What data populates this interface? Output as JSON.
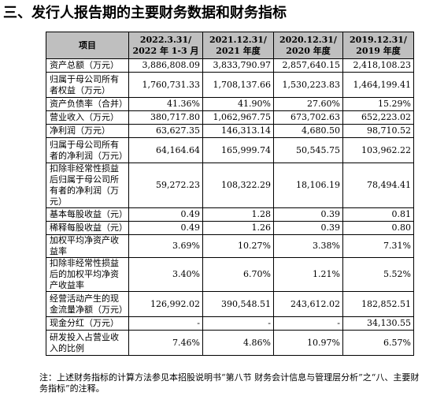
{
  "title": "三、发行人报告期的主要财务数据和财务指标",
  "headers": [
    "项目",
    "2022.3.31/\n2022 年 1-3 月",
    "2021.12.31/\n2021 年度",
    "2020.12.31/\n2020 年度",
    "2019.12.31/\n2019 年度"
  ],
  "rows": [
    {
      "label": "资产总额（万元）",
      "values": [
        "3,886,808.09",
        "3,833,790.97",
        "2,857,640.15",
        "2,418,108.23"
      ]
    },
    {
      "label": "归属于母公司所有者权益（万元）",
      "values": [
        "1,760,731.33",
        "1,708,137.66",
        "1,530,223.83",
        "1,464,199.41"
      ]
    },
    {
      "label": "资产负债率（合并）",
      "values": [
        "41.36%",
        "41.90%",
        "27.60%",
        "15.29%"
      ]
    },
    {
      "label": "营业收入（万元）",
      "values": [
        "380,717.80",
        "1,062,967.75",
        "673,702.63",
        "652,223.02"
      ]
    },
    {
      "label": "净利润（万元）",
      "values": [
        "63,627.35",
        "146,313.14",
        "4,680.50",
        "98,710.52"
      ]
    },
    {
      "label": "归属于母公司所有者的净利润（万元）",
      "values": [
        "64,164.64",
        "165,999.74",
        "50,545.75",
        "103,962.22"
      ]
    },
    {
      "label": "扣除非经常性损益后归属于母公司所有者的净利润（万元）",
      "values": [
        "59,272.23",
        "108,322.29",
        "18,106.19",
        "78,494.41"
      ]
    },
    {
      "label": "基本每股收益（元）",
      "values": [
        "0.49",
        "1.28",
        "0.39",
        "0.81"
      ]
    },
    {
      "label": "稀释每股收益（元）",
      "values": [
        "0.49",
        "1.26",
        "0.39",
        "0.80"
      ]
    },
    {
      "label": "加权平均净资产收益率",
      "values": [
        "3.69%",
        "10.27%",
        "3.38%",
        "7.31%"
      ]
    },
    {
      "label": "扣除非经常性损益后的加权平均净资产收益率",
      "values": [
        "3.40%",
        "6.70%",
        "1.21%",
        "5.52%"
      ]
    },
    {
      "label": "经营活动产生的现金流量净额（万元）",
      "values": [
        "126,992.02",
        "390,548.51",
        "243,612.02",
        "182,852.51"
      ]
    },
    {
      "label": "现金分红（万元）",
      "values": [
        "-",
        "-",
        "-",
        "34,130.55"
      ]
    },
    {
      "label": "研发投入占营业收入的比例",
      "values": [
        "7.46%",
        "4.86%",
        "10.97%",
        "6.57%"
      ]
    }
  ],
  "note": "注：上述财务指标的计算方法参见本招股说明书“第八节  财务会计信息与管理层分析”之“八、主要财务指标”的注释。"
}
